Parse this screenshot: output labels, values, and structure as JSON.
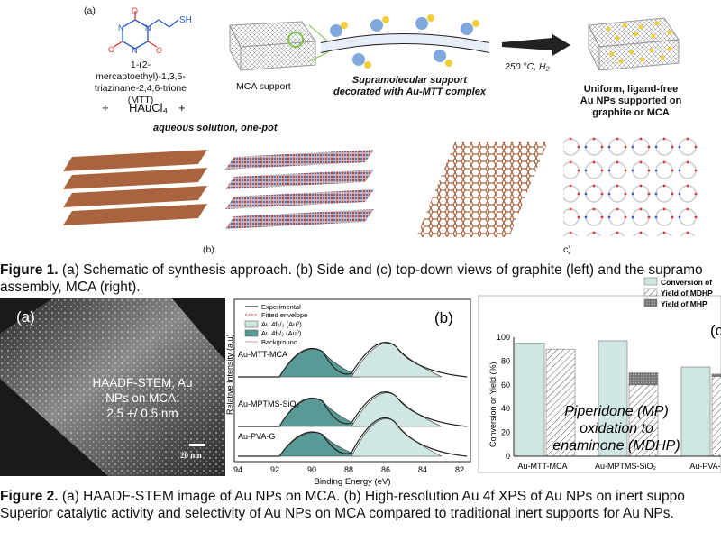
{
  "fig1": {
    "panel_a": "(a)",
    "molecule": {
      "ring_atoms": [
        "N",
        "N",
        "N"
      ],
      "ring_oxygens": [
        "O",
        "O",
        "O"
      ],
      "sh": "SH"
    },
    "mtt_name": [
      "1-(2-mercaptoethyl)-1,3,5-",
      "triazinane-2,4,6-trione",
      "(MTT)"
    ],
    "plus1": "+",
    "haucl4": "HAuCl₄",
    "plus2": "+",
    "aqueous": "aqueous solution, one-pot",
    "mca_support": "MCA support",
    "supramolecular": [
      "Supramolecular support",
      "decorated with Au-MTT complex"
    ],
    "conditions": "250 °C, H₂",
    "uniform": [
      "Uniform, ligand-free",
      "Au NPs supported on",
      "graphite or MCA"
    ],
    "label_b": "(b)",
    "label_c": "c)",
    "caption_prefix": "Figure 1.",
    "caption_line1": " (a) Schematic of synthesis approach. (b) Side and (c) top-down views of graphite (left) and the supramo",
    "caption_line2": "assembly, MCA (right)."
  },
  "fig2": {
    "stem": {
      "label": "(a)",
      "text": [
        "HAADF-STEM, Au",
        "NPs on MCA:",
        "2.5 +/ 0.5 nm"
      ],
      "scalebar": "20 nm"
    },
    "xps": {
      "label": "(b)",
      "legend": [
        "Experimental",
        "Fitted envelope",
        "Au 4f₅/₂ (Au⁰)",
        "Au 4f₇/₂ (Au⁰)",
        "Background"
      ],
      "samples": [
        "Au-MTT-MCA",
        "Au-MPTMS-SiO₂",
        "Au-PVA-G"
      ],
      "ylabel": "Relative Intensity (a.u)",
      "xlabel": "Binding Energy (eV)",
      "xticks": [
        "94",
        "92",
        "90",
        "88",
        "86",
        "84",
        "82"
      ]
    },
    "bars": {
      "label": "(c",
      "legend": [
        "Conversion of",
        "Yield of MDHP",
        "Yield of MHP"
      ],
      "ylabel": "Conversion or Yield (%)",
      "yticks": [
        "0",
        "20",
        "40",
        "60",
        "80",
        "100"
      ],
      "inset": [
        "Piperidone (MP)",
        "oxidation to",
        "enaminone (MDHP)"
      ]
    },
    "caption_prefix": "Figure 2.",
    "caption_line1": " (a) HAADF-STEM image of Au NPs on MCA. (b) High-resolution Au 4f XPS of Au NPs on inert suppo",
    "caption_line2": "Superior catalytic activity and selectivity of Au NPs on MCA compared to traditional inert supports for Au NPs."
  },
  "colors": {
    "teal_dark": "#5a9a96",
    "teal_light": "#cfe6e3",
    "graphite": "#9c5a3a",
    "au": "#f3cd3a",
    "ball_blue": "#7fa8dc"
  },
  "chart_data": {
    "type": "bar",
    "categories": [
      "Au-MTT-MCA",
      "Au-MPTMS-SiO₂",
      "Au-PVA-G"
    ],
    "ylabel": "Conversion or Yield (%)",
    "ylim": [
      0,
      100
    ],
    "series": [
      {
        "name": "Conversion of",
        "values": [
          95,
          97,
          75
        ]
      },
      {
        "name": "Yield of MDHP",
        "values": [
          90,
          60,
          67
        ]
      },
      {
        "name": "Yield of MHP",
        "values": [
          0,
          10,
          2
        ]
      }
    ]
  }
}
